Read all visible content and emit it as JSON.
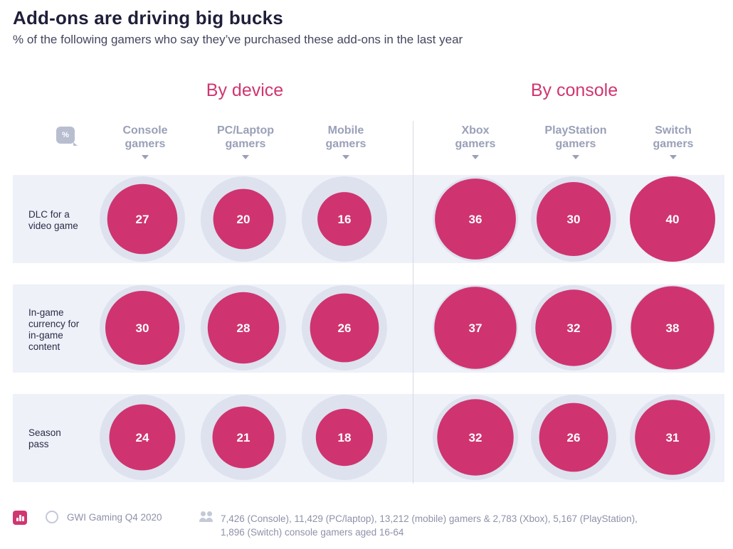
{
  "header": {
    "title": "Add-ons are driving big bucks",
    "subtitle": "% of the following gamers who say they’ve purchased these add-ons in the last year"
  },
  "groups": {
    "device": "By device",
    "console": "By console"
  },
  "pct_badge": "%",
  "columns": [
    {
      "line1": "Console",
      "line2": "gamers"
    },
    {
      "line1": "PC/Laptop",
      "line2": "gamers"
    },
    {
      "line1": "Mobile",
      "line2": "gamers"
    },
    {
      "line1": "Xbox",
      "line2": "gamers"
    },
    {
      "line1": "PlayStation",
      "line2": "gamers"
    },
    {
      "line1": "Switch",
      "line2": "gamers"
    }
  ],
  "rows": [
    {
      "lines": [
        "DLC for a",
        "video game"
      ]
    },
    {
      "lines": [
        "In-game",
        "currency for",
        "in-game",
        "content"
      ]
    },
    {
      "lines": [
        "Season",
        "pass"
      ]
    }
  ],
  "chart_data": {
    "type": "bubble-matrix",
    "title": "Add-ons are driving big bucks",
    "subtitle": "% of the following gamers who say they’ve purchased these add-ons in the last year",
    "categories": [
      "Console gamers",
      "PC/Laptop gamers",
      "Mobile gamers",
      "Xbox gamers",
      "PlayStation gamers",
      "Switch gamers"
    ],
    "column_groups": [
      {
        "name": "By device",
        "columns": [
          "Console gamers",
          "PC/Laptop gamers",
          "Mobile gamers"
        ]
      },
      {
        "name": "By console",
        "columns": [
          "Xbox gamers",
          "PlayStation gamers",
          "Switch gamers"
        ]
      }
    ],
    "series": [
      {
        "name": "DLC for a video game",
        "values": [
          27,
          20,
          16,
          36,
          30,
          40
        ]
      },
      {
        "name": "In-game currency for in-game content",
        "values": [
          30,
          28,
          26,
          37,
          32,
          38
        ]
      },
      {
        "name": "Season pass",
        "values": [
          24,
          21,
          18,
          32,
          26,
          31
        ]
      }
    ],
    "unit": "%",
    "colors": {
      "bubble": "#cf3470",
      "halo": "#dde2ee",
      "band": "#eef1f8",
      "label": "#ffffff"
    }
  },
  "footer": {
    "source": "GWI Gaming Q4 2020",
    "base_line1": "7,426 (Console), 11,429 (PC/laptop), 13,212 (mobile) gamers & 2,783 (Xbox), 5,167 (PlayStation),",
    "base_line2": "1,896 (Switch) console gamers aged 16-64"
  }
}
